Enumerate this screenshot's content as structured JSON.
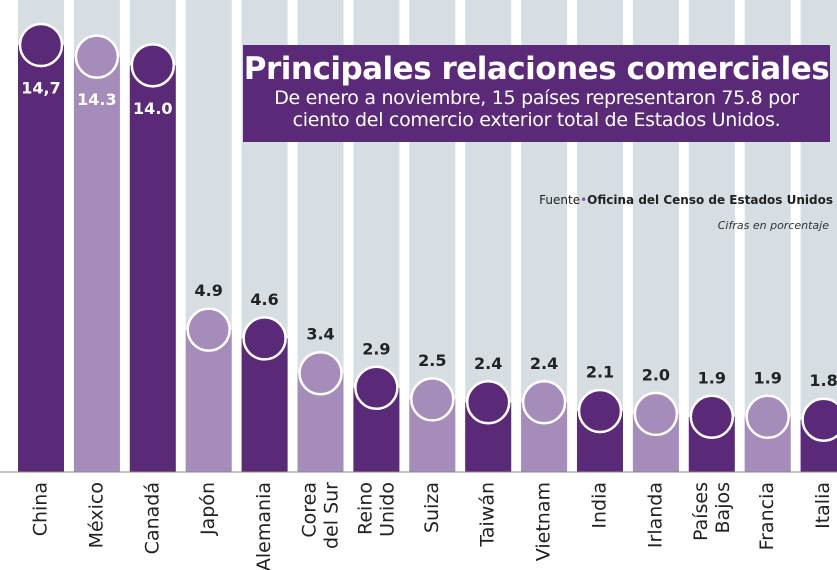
{
  "chart_data": {
    "type": "bar",
    "title": "Principales relaciones comerciales",
    "subtitle": "De enero a noviembre, 15 países representaron 75.8 por ciento del comercio exterior total de Estados Unidos.",
    "source_label": "Fuente",
    "source": "Oficina del Censo de Estados Unidos",
    "note": "Cifras en porcentaje",
    "categories": [
      "China",
      "México",
      "Canadá",
      "Japón",
      "Alemania",
      "Corea del Sur",
      "Reino Unido",
      "Suiza",
      "Taiwán",
      "Vietnam",
      "India",
      "Irlanda",
      "Países Bajos",
      "Francia",
      "Italia"
    ],
    "values": [
      14.7,
      14.3,
      14.0,
      4.9,
      4.6,
      3.4,
      2.9,
      2.5,
      2.4,
      2.4,
      2.1,
      2.0,
      1.9,
      1.9,
      1.8
    ],
    "value_labels": [
      "14,7",
      "14.3",
      "14.0",
      "4.9",
      "4.6",
      "3.4",
      "2.9",
      "2.5",
      "2.4",
      "2.4",
      "2.1",
      "2.0",
      "1.9",
      "1.9",
      "1.8"
    ],
    "colors": [
      "#5a2a78",
      "#a68cbb"
    ]
  }
}
